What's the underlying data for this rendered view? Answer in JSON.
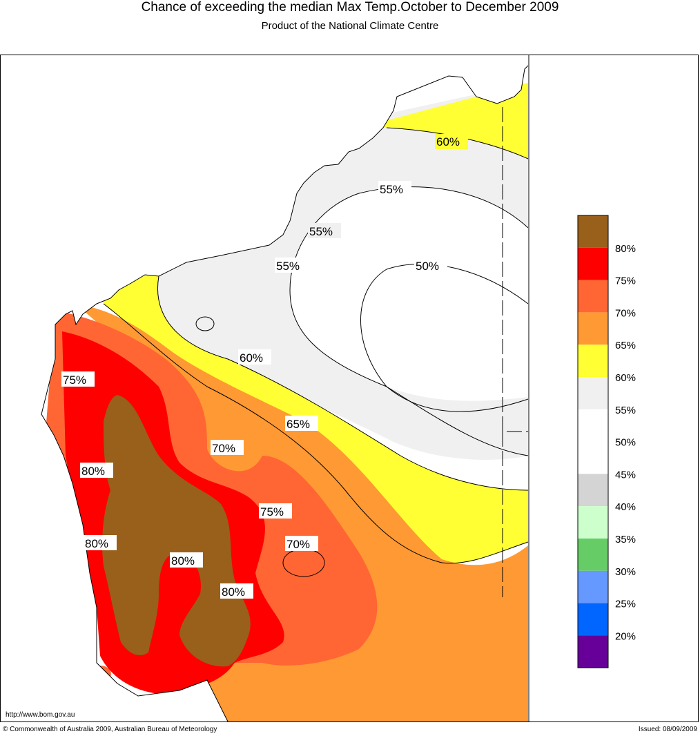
{
  "header": {
    "title": "Chance of exceeding the median Max Temp.October to December 2009",
    "subtitle": "Product of the National Climate Centre"
  },
  "footer": {
    "url": "http://www.bom.gov.au",
    "copyright": "© Commonwealth of Australia 2009, Australian Bureau of Meteorology",
    "issued": "Issued: 08/09/2009"
  },
  "contour_labels": [
    "60%",
    "55%",
    "55%",
    "55%",
    "50%",
    "60%",
    "75%",
    "65%",
    "70%",
    "80%",
    "75%",
    "70%",
    "80%",
    "80%",
    "80%"
  ],
  "legend": {
    "colors": [
      "#98601a",
      "#ff0000",
      "#ff6633",
      "#ff9933",
      "#ffff33",
      "#f0f0f0",
      "#ffffff",
      "#ffffff",
      "#d4d4d4",
      "#ccffcc",
      "#66cc66",
      "#6699ff",
      "#0066ff",
      "#660099"
    ],
    "labels": [
      "80%",
      "75%",
      "70%",
      "65%",
      "60%",
      "55%",
      "50%",
      "45%",
      "40%",
      "35%",
      "30%",
      "25%",
      "20%"
    ]
  }
}
